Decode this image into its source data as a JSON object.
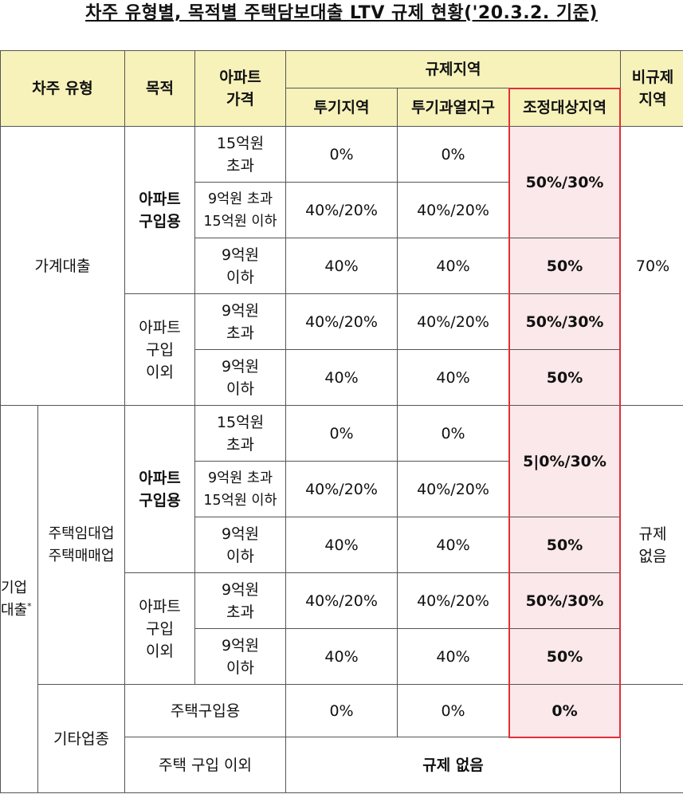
{
  "title": "차주 유형별, 목적별 주택담보대출 LTV 규제 현황('20.3.2. 기준)",
  "header": {
    "borrower_type": "차주 유형",
    "purpose": "목적",
    "price": "아파트\n가격",
    "regulated": "규제지역",
    "speculation": "투기지역",
    "overheated": "투기과열지구",
    "adjusted": "조정대상지역",
    "non_regulated": "비규제\n지역"
  },
  "household": {
    "label": "가계대출",
    "non_regulated": "70%",
    "purchase": {
      "label": "아파트\n구입용",
      "rows": [
        {
          "price": "15억원\n초과",
          "spec": "0%",
          "over": "0%"
        },
        {
          "price": "9억원 초과\n15억원 이하",
          "spec": "40%/20%",
          "over": "40%/20%"
        },
        {
          "price": "9억원\n이하",
          "spec": "40%",
          "over": "40%",
          "adj": "50%"
        }
      ],
      "adj_merged": "50%/30%"
    },
    "other": {
      "label": "아파트\n구입\n이외",
      "rows": [
        {
          "price": "9억원\n초과",
          "spec": "40%/20%",
          "over": "40%/20%",
          "adj": "50%/30%"
        },
        {
          "price": "9억원\n이하",
          "spec": "40%",
          "over": "40%",
          "adj": "50%"
        }
      ]
    }
  },
  "corporate": {
    "label": "기업\n대출",
    "label_mark": "*",
    "non_regulated": "규제\n없음",
    "housing_biz": {
      "label": "주택임대업\n주택매매업",
      "purchase": {
        "label": "아파트\n구입용",
        "rows": [
          {
            "price": "15억원\n초과",
            "spec": "0%",
            "over": "0%"
          },
          {
            "price": "9억원 초과\n15억원 이하",
            "spec": "40%/20%",
            "over": "40%/20%"
          },
          {
            "price": "9억원\n이하",
            "spec": "40%",
            "over": "40%",
            "adj": "50%"
          }
        ],
        "adj_merged": "5|0%/30%"
      },
      "other": {
        "label": "아파트\n구입\n이외",
        "rows": [
          {
            "price": "9억원\n초과",
            "spec": "40%/20%",
            "over": "40%/20%",
            "adj": "50%/30%"
          },
          {
            "price": "9억원\n이하",
            "spec": "40%",
            "over": "40%",
            "adj": "50%"
          }
        ]
      }
    },
    "other_biz": {
      "label": "기타업종",
      "house_purchase": {
        "label": "주택구입용",
        "spec": "0%",
        "over": "0%",
        "adj": "0%"
      },
      "non_purchase": {
        "label": "주택 구입 이외",
        "value": "규제 없음"
      }
    }
  },
  "colors": {
    "header_bg": "#f7f2ba",
    "highlight_bg": "#fbe8ea",
    "highlight_border": "#e22e3a"
  }
}
